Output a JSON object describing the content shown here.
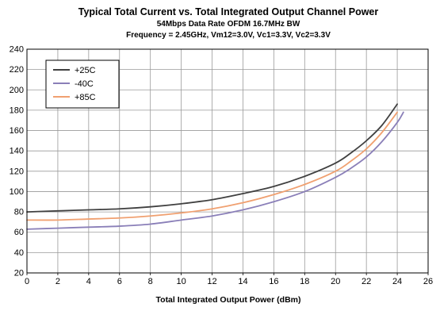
{
  "chart_data": {
    "type": "line",
    "title": "Typical Total Current vs. Total Integrated Output Channel Power",
    "subtitle": "54Mbps Data Rate OFDM 16.7MHz BW",
    "subtitle2": "Frequency = 2.45GHz, Vm12=3.0V, Vc1=3.3V, Vc2=3.3V",
    "xlabel": "Total Integrated Output Power (dBm)",
    "ylabel": "",
    "xlim": [
      0,
      26
    ],
    "ylim": [
      20,
      240
    ],
    "xticks": [
      "0",
      "2",
      "4",
      "6",
      "8",
      "10",
      "12",
      "14",
      "16",
      "18",
      "20",
      "22",
      "24",
      "26"
    ],
    "yticks": [
      "20",
      "40",
      "60",
      "80",
      "100",
      "120",
      "140",
      "160",
      "180",
      "200",
      "220",
      "240"
    ],
    "grid": true,
    "legend_position": "top-left",
    "series": [
      {
        "name": "+25C",
        "color": "#404040",
        "x": [
          0,
          2,
          4,
          6,
          8,
          10,
          12,
          14,
          16,
          18,
          20,
          21,
          22,
          23,
          24
        ],
        "y": [
          80,
          81,
          82,
          83,
          85,
          88,
          92,
          98,
          105,
          115,
          128,
          138,
          150,
          165,
          186
        ]
      },
      {
        "name": "-40C",
        "color": "#8a7fb8",
        "x": [
          0,
          2,
          4,
          6,
          8,
          10,
          12,
          14,
          16,
          18,
          20,
          21,
          22,
          23,
          24,
          24.4
        ],
        "y": [
          63,
          64,
          65,
          66,
          68,
          72,
          76,
          82,
          90,
          100,
          114,
          123,
          134,
          149,
          168,
          178
        ]
      },
      {
        "name": "+85C",
        "color": "#f0a070",
        "x": [
          0,
          2,
          4,
          6,
          8,
          10,
          12,
          14,
          16,
          18,
          20,
          21,
          22,
          23,
          24
        ],
        "y": [
          72,
          72,
          73,
          74,
          76,
          79,
          83,
          89,
          97,
          107,
          120,
          130,
          142,
          158,
          178
        ]
      }
    ]
  }
}
